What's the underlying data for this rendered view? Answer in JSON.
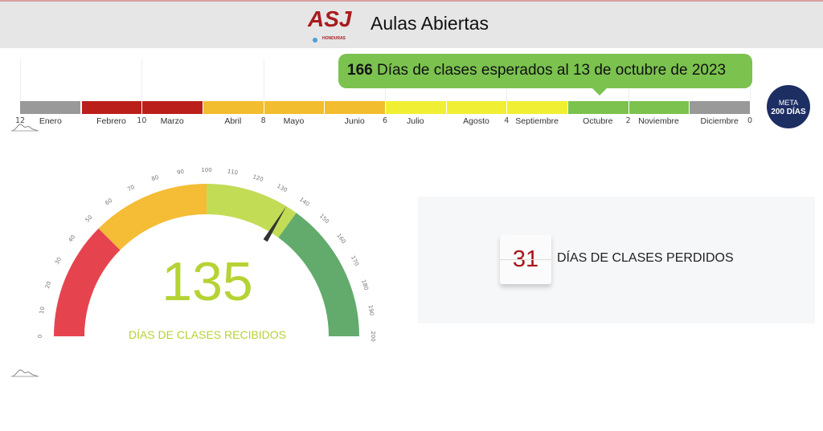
{
  "header": {
    "title": "Aulas Abiertas",
    "logo_text": "ASJ",
    "logo_sub": "HONDURAS"
  },
  "timeline": {
    "months": [
      {
        "label": "Enero",
        "color": "#999999"
      },
      {
        "label": "Febrero",
        "color": "#bb1f1a"
      },
      {
        "label": "Marzo",
        "color": "#bb1f1a"
      },
      {
        "label": "Abril",
        "color": "#f2bd2e"
      },
      {
        "label": "Mayo",
        "color": "#f2bd2e"
      },
      {
        "label": "Junio",
        "color": "#f2bd2e"
      },
      {
        "label": "Julio",
        "color": "#f0ef33"
      },
      {
        "label": "Agosto",
        "color": "#f0ef33"
      },
      {
        "label": "Septiembre",
        "color": "#f0ef33"
      },
      {
        "label": "Octubre",
        "color": "#7bc24f"
      },
      {
        "label": "Noviembre",
        "color": "#7bc24f"
      },
      {
        "label": "Diciembre",
        "color": "#999999"
      }
    ],
    "scale": [
      "12",
      "10",
      "8",
      "6",
      "4",
      "2",
      "0"
    ],
    "callout_value": "166",
    "callout_text": " Días de clases esperados al 13 de octubre de 2023",
    "meta_line1": "META",
    "meta_line2": "200 DÍAS"
  },
  "gauge": {
    "min": 0,
    "max": 200,
    "value": 135,
    "value_text": "135",
    "label": "DÍAS DE CLASES RECIBIDOS",
    "ticks": [
      "0",
      "10",
      "20",
      "30",
      "40",
      "50",
      "60",
      "70",
      "80",
      "90",
      "100",
      "110",
      "120",
      "130",
      "140",
      "150",
      "160",
      "170",
      "180",
      "190",
      "200"
    ],
    "bands": [
      {
        "from": 0,
        "to": 50,
        "color": "#e5444f"
      },
      {
        "from": 50,
        "to": 100,
        "color": "#f4bd35"
      },
      {
        "from": 100,
        "to": 140,
        "color": "#c3dc56"
      },
      {
        "from": 140,
        "to": 200,
        "color": "#62ab6c"
      }
    ],
    "value_color": "#b5d334"
  },
  "lost": {
    "value": "31",
    "label": "DÍAS DE CLASES PERDIDOS"
  }
}
